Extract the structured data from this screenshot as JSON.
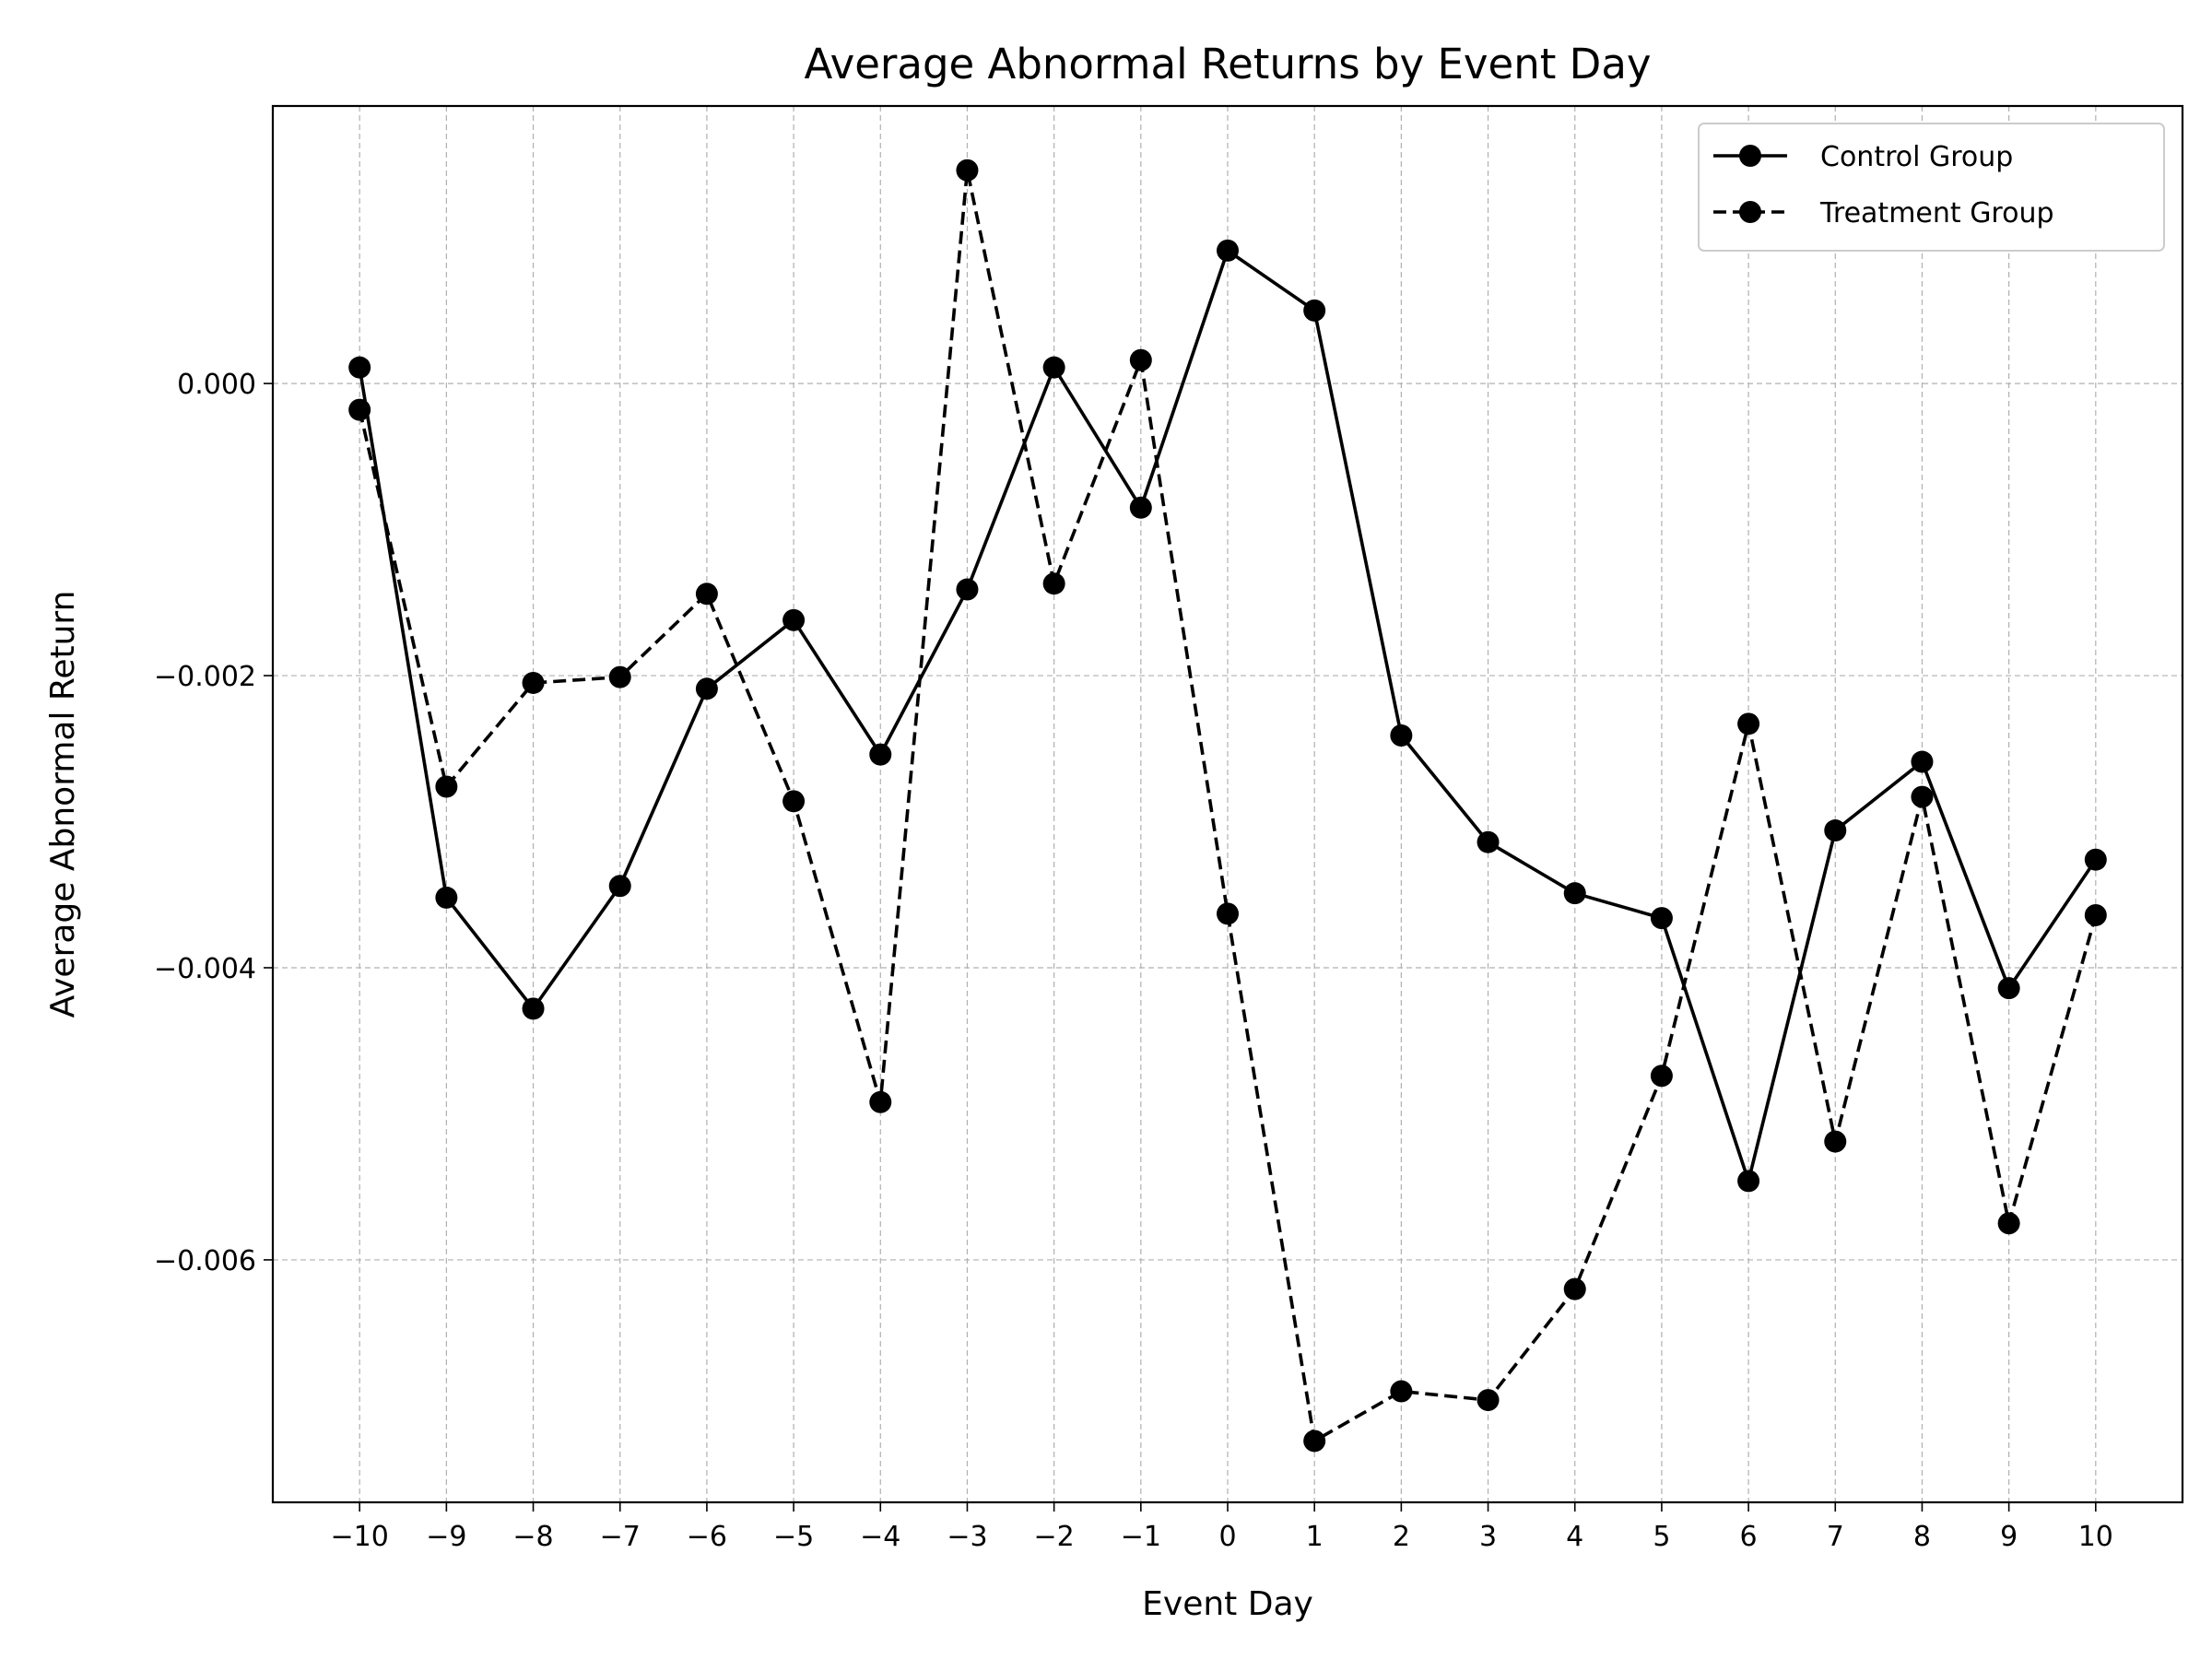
{
  "chart_data": {
    "type": "line",
    "title": "Average Abnormal Returns by Event Day",
    "xlabel": "Event Day",
    "ylabel": "Average Abnormal Return",
    "x": [
      -10,
      -9,
      -8,
      -7,
      -6,
      -5,
      -4,
      -3,
      -2,
      -1,
      0,
      1,
      2,
      3,
      4,
      5,
      6,
      7,
      8,
      9,
      10
    ],
    "x_tick_labels": [
      "−10",
      "−9",
      "−8",
      "−7",
      "−6",
      "−5",
      "−4",
      "−3",
      "−2",
      "−1",
      "0",
      "1",
      "2",
      "3",
      "4",
      "5",
      "6",
      "7",
      "8",
      "9",
      "10"
    ],
    "xlim": [
      -11,
      11
    ],
    "y_ticks": [
      0.0,
      -0.002,
      -0.004,
      -0.006
    ],
    "y_tick_labels": [
      "0.000",
      "−0.002",
      "−0.004",
      "−0.006"
    ],
    "ylim": [
      -0.00766,
      0.0019
    ],
    "grid": true,
    "legend_position": "top-right",
    "series": [
      {
        "name": "Control Group",
        "line_style": "solid",
        "marker": "circle",
        "color": "#000000",
        "values": [
          0.00011,
          -0.00352,
          -0.00428,
          -0.00344,
          -0.00209,
          -0.00162,
          -0.00254,
          -0.00141,
          0.00011,
          -0.00085,
          0.00091,
          0.0005,
          -0.00241,
          -0.00314,
          -0.00349,
          -0.00366,
          -0.00546,
          -0.00306,
          -0.00259,
          -0.00414,
          -0.00326
        ]
      },
      {
        "name": "Treatment Group",
        "line_style": "dashed",
        "marker": "circle",
        "color": "#000000",
        "values": [
          -0.00018,
          -0.00276,
          -0.00205,
          -0.00201,
          -0.00144,
          -0.00286,
          -0.00492,
          0.00146,
          -0.00137,
          0.00016,
          -0.00363,
          -0.00724,
          -0.0069,
          -0.00696,
          -0.0062,
          -0.00474,
          -0.00233,
          -0.00519,
          -0.00283,
          -0.00575,
          -0.00364
        ]
      }
    ]
  }
}
